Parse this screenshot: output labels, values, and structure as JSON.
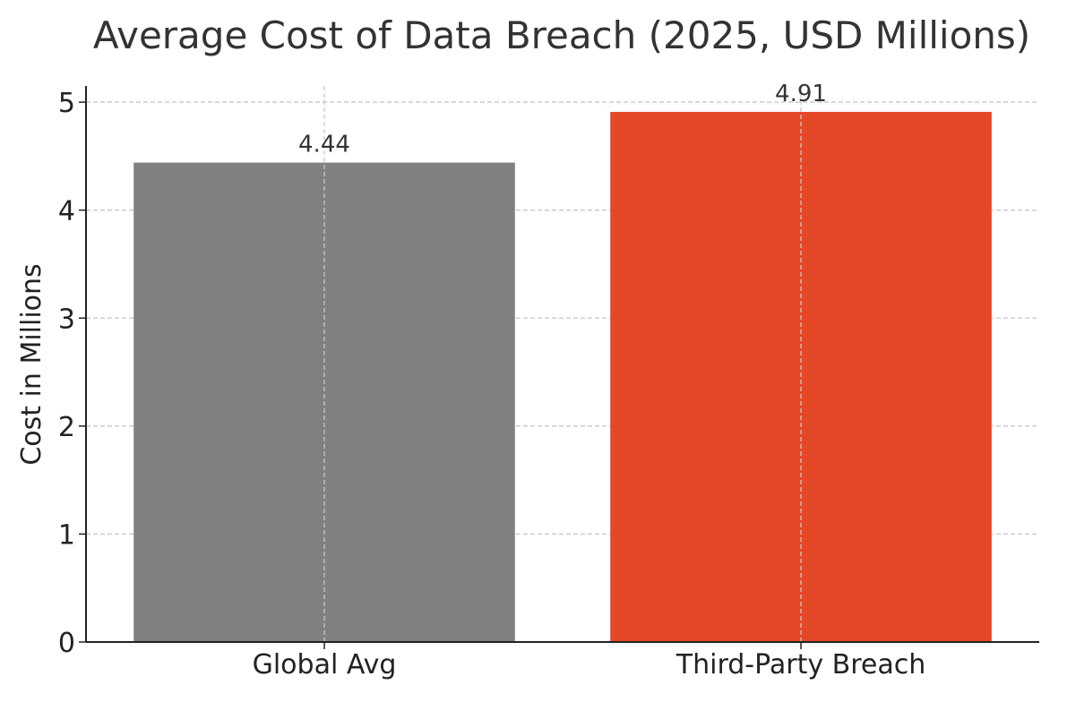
{
  "chart_data": {
    "type": "bar",
    "title": "Average Cost of Data Breach (2025, USD Millions)",
    "xlabel": "",
    "ylabel": "Cost in Millions",
    "categories": [
      "Global Avg",
      "Third-Party Breach"
    ],
    "values": [
      4.44,
      4.91
    ],
    "value_labels": [
      "4.44",
      "4.91"
    ],
    "bar_colors": [
      "#808080",
      "#e54826"
    ],
    "ylim": [
      0,
      5.15
    ],
    "yticks": [
      0,
      1,
      2,
      3,
      4,
      5
    ],
    "ytick_labels": [
      "0",
      "1",
      "2",
      "3",
      "4",
      "5"
    ],
    "grid": true,
    "grid_style": "dashed",
    "legend": "none"
  }
}
